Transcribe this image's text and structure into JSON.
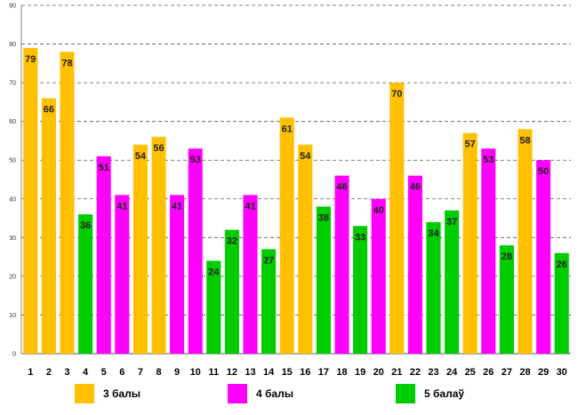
{
  "chart_data": {
    "type": "bar",
    "categories": [
      "1",
      "2",
      "3",
      "4",
      "5",
      "6",
      "7",
      "8",
      "9",
      "10",
      "11",
      "12",
      "13",
      "14",
      "15",
      "16",
      "17",
      "18",
      "19",
      "20",
      "21",
      "22",
      "23",
      "24",
      "25",
      "26",
      "27",
      "28",
      "29",
      "30"
    ],
    "values": [
      79,
      66,
      78,
      36,
      51,
      41,
      54,
      56,
      41,
      53,
      24,
      32,
      41,
      27,
      61,
      54,
      38,
      46,
      33,
      40,
      70,
      46,
      34,
      37,
      57,
      53,
      28,
      58,
      50,
      26
    ],
    "groups": [
      0,
      0,
      0,
      2,
      1,
      1,
      0,
      0,
      1,
      1,
      2,
      2,
      1,
      2,
      0,
      0,
      2,
      1,
      2,
      1,
      0,
      1,
      2,
      2,
      0,
      1,
      2,
      0,
      1,
      2
    ],
    "ylim": [
      0,
      90
    ],
    "yticks": [
      "0",
      "10",
      "20",
      "30",
      "40",
      "50",
      "60",
      "70",
      "80",
      "90"
    ],
    "title": "",
    "xlabel": "",
    "ylabel": "",
    "grid": true,
    "legend_position": "bottom",
    "series": [
      {
        "name": "3 балы",
        "color": "#FFC000"
      },
      {
        "name": "4 балы",
        "color": "#FF00FF"
      },
      {
        "name": "5 балаў",
        "color": "#00CC00"
      }
    ]
  }
}
